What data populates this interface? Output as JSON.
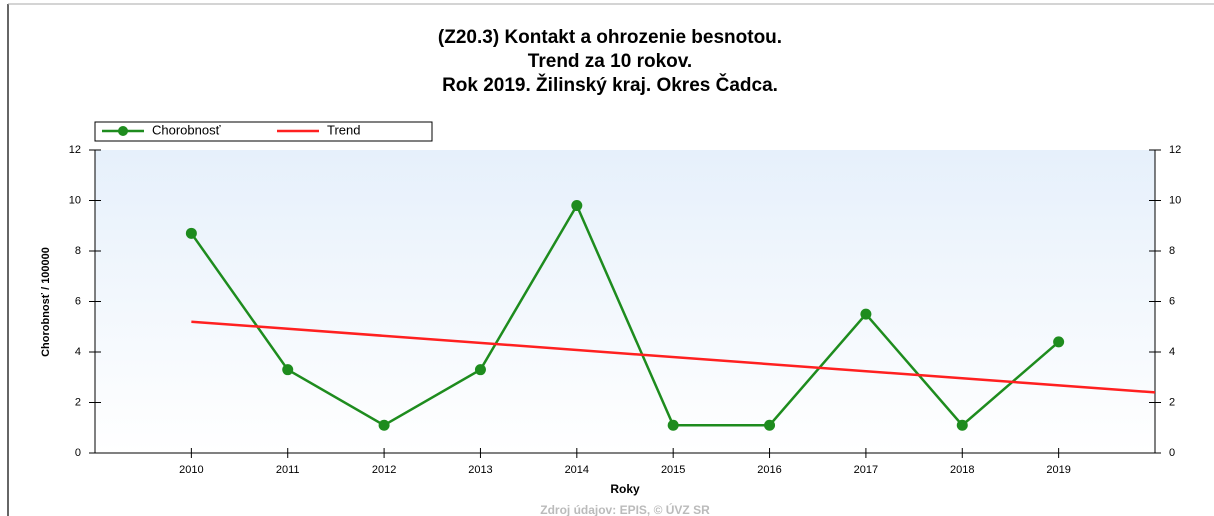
{
  "chart_data": {
    "type": "line",
    "title": [
      "(Z20.3)  Kontakt a ohrozenie besnotou.",
      "Trend za 10 rokov.",
      "Rok 2019. Žilinský kraj. Okres Čadca."
    ],
    "y_label": "Chorobnosť / 100000",
    "x_label": "Roky",
    "source": "Zdroj údajov: EPIS, © ÚVZ SR",
    "xlim": [
      2009,
      2020
    ],
    "xticks": [
      2010,
      2011,
      2012,
      2013,
      2014,
      2015,
      2016,
      2017,
      2018,
      2019
    ],
    "ylim": [
      0,
      12
    ],
    "yticks": [
      0,
      2,
      4,
      6,
      8,
      10,
      12
    ],
    "series": [
      {
        "name": "Chorobnosť",
        "color": "#1e8c1e",
        "markers": true,
        "x": [
          2010,
          2011,
          2012,
          2013,
          2014,
          2015,
          2016,
          2017,
          2018,
          2019
        ],
        "values": [
          8.7,
          3.3,
          1.1,
          3.3,
          9.8,
          1.1,
          1.1,
          5.5,
          1.1,
          4.4
        ]
      },
      {
        "name": "Trend",
        "color": "#ff2020",
        "markers": false,
        "x": [
          2010,
          2020
        ],
        "values": [
          5.2,
          2.4
        ]
      }
    ]
  }
}
